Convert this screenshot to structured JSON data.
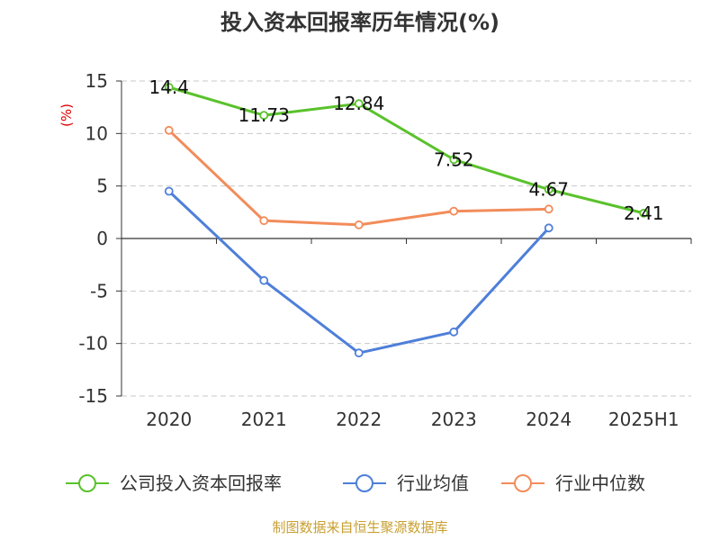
{
  "chart_data": {
    "type": "line",
    "title": "投入资本回报率历年情况(%)",
    "ylabel": "(%)",
    "xlabel": "",
    "categories": [
      "2020",
      "2021",
      "2022",
      "2023",
      "2024",
      "2025H1"
    ],
    "ylim": [
      -15,
      15
    ],
    "yticks": [
      15,
      10,
      5,
      0,
      -5,
      -10,
      -15
    ],
    "grid": "horizontal dashed",
    "legend_position": "bottom",
    "series": [
      {
        "name": "公司投入资本回报率",
        "color": "#5ac22b",
        "values": [
          14.4,
          11.73,
          12.84,
          7.52,
          4.67,
          2.41
        ],
        "labels": [
          "14.4",
          "11.73",
          "12.84",
          "7.52",
          "4.67",
          "2.41"
        ]
      },
      {
        "name": "行业均值",
        "color": "#4e7fd9",
        "values": [
          4.5,
          -4,
          -10.9,
          -8.9,
          1,
          null
        ]
      },
      {
        "name": "行业中位数",
        "color": "#f28c5a",
        "values": [
          10.3,
          1.7,
          1.3,
          2.6,
          2.8,
          null
        ]
      }
    ]
  },
  "source": "制图数据来自恒生聚源数据库"
}
